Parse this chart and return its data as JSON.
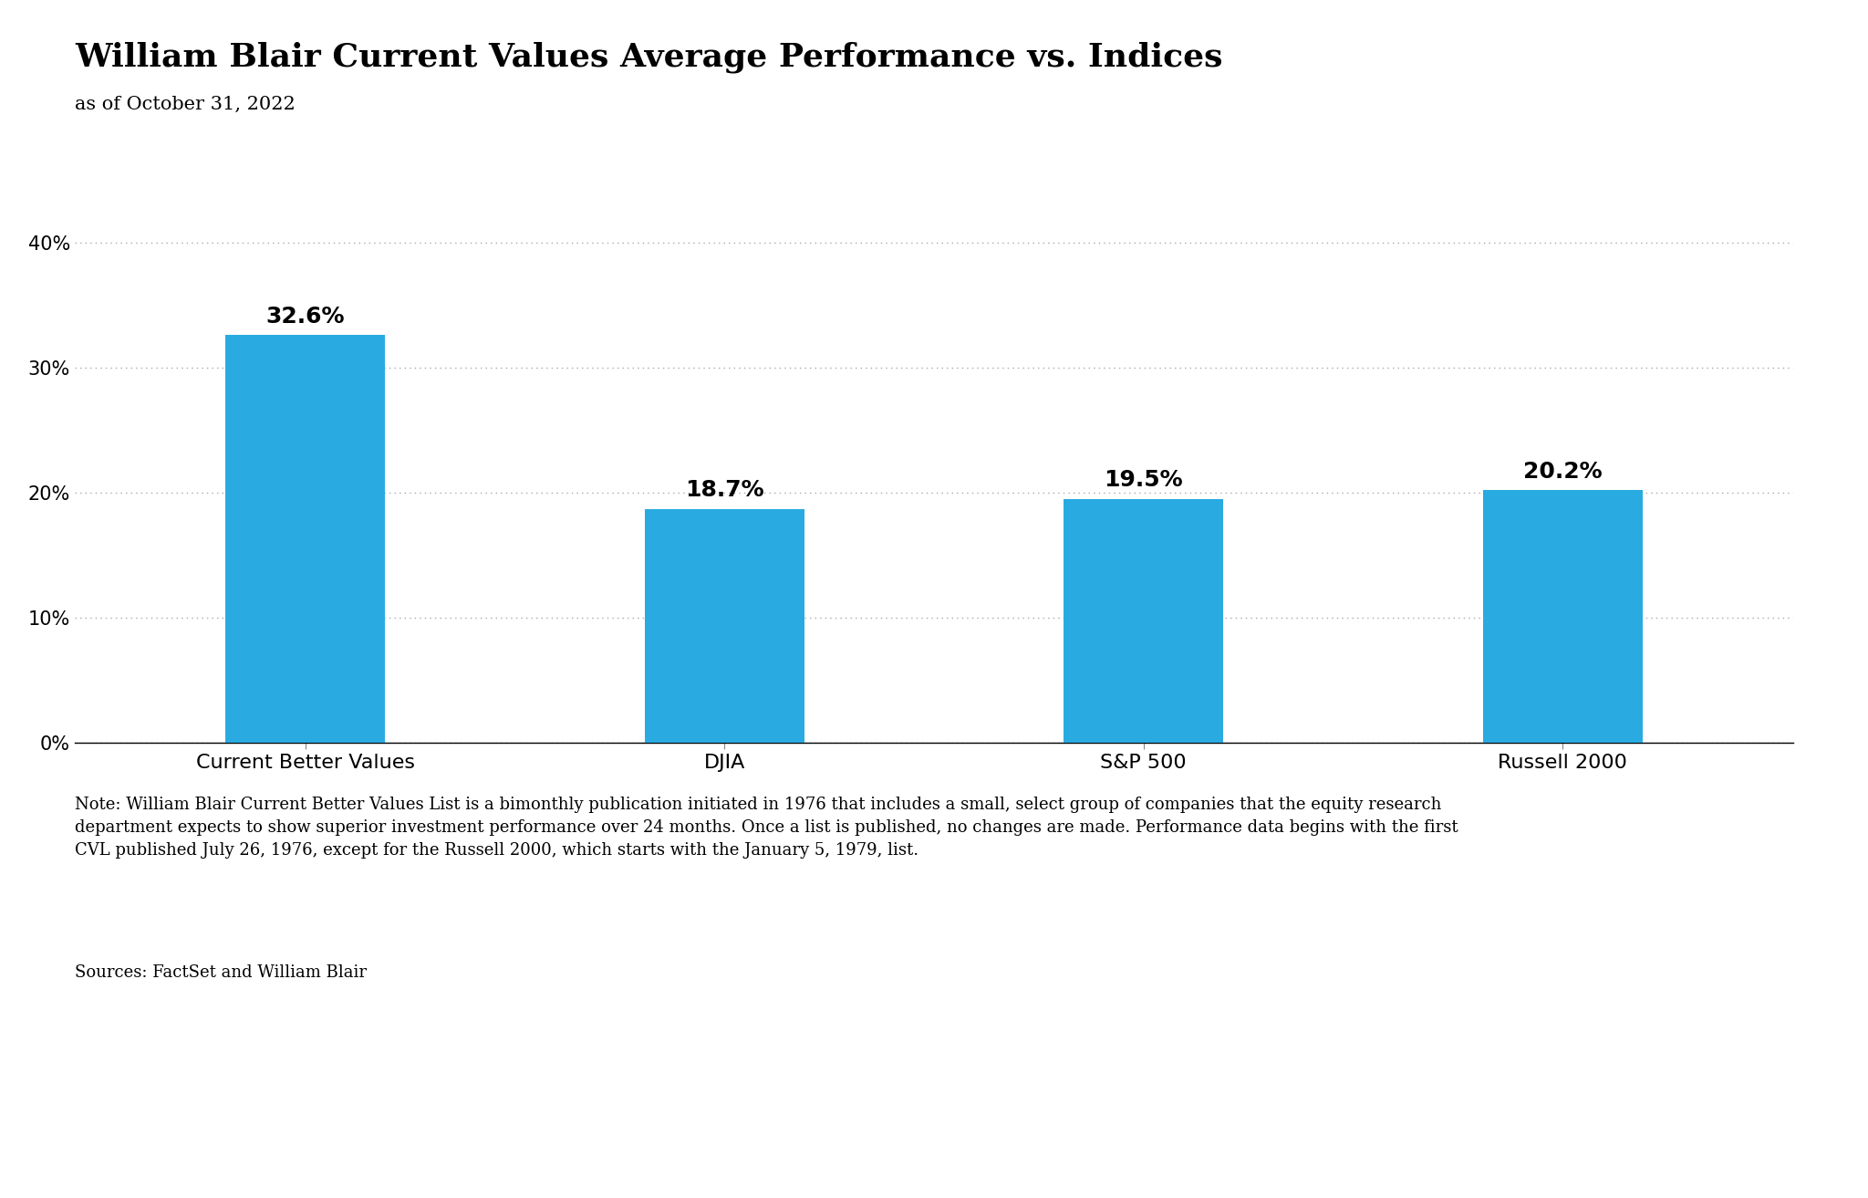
{
  "title": "William Blair Current Values Average Performance vs. Indices",
  "subtitle": "as of October 31, 2022",
  "categories": [
    "Current Better Values",
    "DJIA",
    "S&P 500",
    "Russell 2000"
  ],
  "values": [
    32.6,
    18.7,
    19.5,
    20.2
  ],
  "bar_color": "#29ABE2",
  "top_line_color": "#29ABE2",
  "background_color": "#FFFFFF",
  "ylim": [
    0,
    45
  ],
  "yticks": [
    0,
    10,
    20,
    30,
    40
  ],
  "ytick_labels": [
    "0%",
    "10%",
    "20%",
    "30%",
    "40%"
  ],
  "value_labels": [
    "32.6%",
    "18.7%",
    "19.5%",
    "20.2%"
  ],
  "title_fontsize": 26,
  "subtitle_fontsize": 15,
  "tick_fontsize": 15,
  "label_fontsize": 16,
  "bar_label_fontsize": 18,
  "note_text": "Note: William Blair Current Better Values List is a bimonthly publication initiated in 1976 that includes a small, select group of companies that the equity research\ndepartment expects to show superior investment performance over 24 months. Once a list is published, no changes are made. Performance data begins with the first\nCVL published July 26, 1976, except for the Russell 2000, which starts with the January 5, 1979, list.",
  "sources_text": "Sources: FactSet and William Blair",
  "note_fontsize": 13,
  "sources_fontsize": 13,
  "fig_width": 20.48,
  "fig_height": 13.13
}
